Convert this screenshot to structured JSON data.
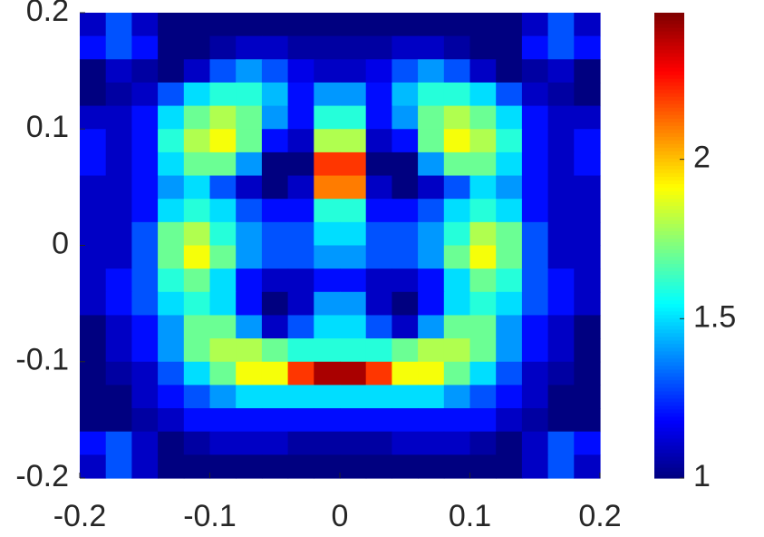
{
  "chart_data": {
    "type": "heatmap",
    "colormap": "jet",
    "xlim": [
      -0.2,
      0.2
    ],
    "ylim": [
      -0.2,
      0.2
    ],
    "xticks": [
      -0.2,
      -0.1,
      0,
      0.1,
      0.2
    ],
    "yticks": [
      -0.2,
      -0.1,
      0,
      0.1,
      0.2
    ],
    "clim": [
      1,
      2.46
    ],
    "cticks": [
      1,
      1.5,
      2
    ],
    "z": [
      [
        1.1,
        1.3,
        1.1,
        1.0,
        1.0,
        1.0,
        1.0,
        1.0,
        1.0,
        1.0,
        1.0,
        1.0,
        1.0,
        1.0,
        1.0,
        1.0,
        1.0,
        1.1,
        1.3,
        1.1
      ],
      [
        1.2,
        1.3,
        1.2,
        1.0,
        1.0,
        1.05,
        1.1,
        1.1,
        1.05,
        1.05,
        1.05,
        1.05,
        1.1,
        1.1,
        1.05,
        1.0,
        1.0,
        1.2,
        1.3,
        1.2
      ],
      [
        1.0,
        1.1,
        1.05,
        1.0,
        1.1,
        1.3,
        1.4,
        1.3,
        1.15,
        1.1,
        1.1,
        1.15,
        1.3,
        1.4,
        1.3,
        1.1,
        1.0,
        1.05,
        1.1,
        1.0
      ],
      [
        1.0,
        1.05,
        1.1,
        1.3,
        1.5,
        1.6,
        1.6,
        1.45,
        1.2,
        1.4,
        1.4,
        1.2,
        1.45,
        1.6,
        1.6,
        1.5,
        1.3,
        1.1,
        1.05,
        1.0
      ],
      [
        1.1,
        1.1,
        1.2,
        1.5,
        1.7,
        1.8,
        1.7,
        1.4,
        1.2,
        1.6,
        1.6,
        1.2,
        1.4,
        1.7,
        1.8,
        1.7,
        1.5,
        1.2,
        1.1,
        1.1
      ],
      [
        1.2,
        1.1,
        1.2,
        1.6,
        1.8,
        1.9,
        1.7,
        1.2,
        1.1,
        1.8,
        1.8,
        1.1,
        1.2,
        1.7,
        1.9,
        1.8,
        1.6,
        1.2,
        1.1,
        1.2
      ],
      [
        1.2,
        1.1,
        1.2,
        1.5,
        1.7,
        1.7,
        1.4,
        1.0,
        1.0,
        2.2,
        2.2,
        1.0,
        1.0,
        1.4,
        1.7,
        1.7,
        1.5,
        1.2,
        1.1,
        1.2
      ],
      [
        1.1,
        1.1,
        1.2,
        1.4,
        1.5,
        1.3,
        1.1,
        1.0,
        1.1,
        2.1,
        2.1,
        1.1,
        1.0,
        1.1,
        1.3,
        1.5,
        1.4,
        1.2,
        1.1,
        1.1
      ],
      [
        1.1,
        1.1,
        1.2,
        1.5,
        1.6,
        1.5,
        1.3,
        1.2,
        1.2,
        1.6,
        1.6,
        1.2,
        1.2,
        1.3,
        1.5,
        1.6,
        1.5,
        1.2,
        1.1,
        1.1
      ],
      [
        1.1,
        1.1,
        1.3,
        1.7,
        1.8,
        1.6,
        1.4,
        1.3,
        1.3,
        1.5,
        1.5,
        1.3,
        1.3,
        1.4,
        1.6,
        1.8,
        1.7,
        1.3,
        1.1,
        1.1
      ],
      [
        1.1,
        1.1,
        1.3,
        1.7,
        1.9,
        1.7,
        1.4,
        1.3,
        1.3,
        1.4,
        1.4,
        1.3,
        1.3,
        1.4,
        1.7,
        1.9,
        1.7,
        1.3,
        1.1,
        1.1
      ],
      [
        1.1,
        1.2,
        1.3,
        1.6,
        1.7,
        1.5,
        1.2,
        1.1,
        1.1,
        1.2,
        1.2,
        1.1,
        1.1,
        1.2,
        1.5,
        1.7,
        1.6,
        1.3,
        1.2,
        1.1
      ],
      [
        1.1,
        1.2,
        1.3,
        1.5,
        1.6,
        1.5,
        1.2,
        1.0,
        1.1,
        1.4,
        1.4,
        1.1,
        1.0,
        1.2,
        1.5,
        1.6,
        1.5,
        1.3,
        1.2,
        1.1
      ],
      [
        1.0,
        1.1,
        1.2,
        1.4,
        1.7,
        1.7,
        1.4,
        1.1,
        1.3,
        1.5,
        1.5,
        1.3,
        1.1,
        1.4,
        1.7,
        1.7,
        1.4,
        1.2,
        1.1,
        1.0
      ],
      [
        1.0,
        1.1,
        1.2,
        1.4,
        1.7,
        1.8,
        1.8,
        1.7,
        1.6,
        1.6,
        1.6,
        1.6,
        1.7,
        1.8,
        1.8,
        1.7,
        1.4,
        1.2,
        1.1,
        1.0
      ],
      [
        1.0,
        1.05,
        1.1,
        1.3,
        1.5,
        1.7,
        1.9,
        1.9,
        2.2,
        2.4,
        2.4,
        2.2,
        1.9,
        1.9,
        1.7,
        1.5,
        1.3,
        1.1,
        1.05,
        1.0
      ],
      [
        1.0,
        1.0,
        1.1,
        1.2,
        1.3,
        1.4,
        1.5,
        1.5,
        1.5,
        1.5,
        1.5,
        1.5,
        1.5,
        1.5,
        1.4,
        1.3,
        1.2,
        1.1,
        1.0,
        1.0
      ],
      [
        1.0,
        1.0,
        1.05,
        1.1,
        1.2,
        1.2,
        1.2,
        1.2,
        1.2,
        1.2,
        1.2,
        1.2,
        1.2,
        1.2,
        1.2,
        1.2,
        1.1,
        1.05,
        1.0,
        1.0
      ],
      [
        1.2,
        1.3,
        1.1,
        1.0,
        1.05,
        1.1,
        1.1,
        1.1,
        1.05,
        1.05,
        1.05,
        1.05,
        1.1,
        1.1,
        1.1,
        1.05,
        1.0,
        1.1,
        1.3,
        1.2
      ],
      [
        1.1,
        1.3,
        1.1,
        1.0,
        1.0,
        1.0,
        1.0,
        1.0,
        1.0,
        1.0,
        1.0,
        1.0,
        1.0,
        1.0,
        1.0,
        1.0,
        1.0,
        1.1,
        1.3,
        1.1
      ]
    ]
  }
}
